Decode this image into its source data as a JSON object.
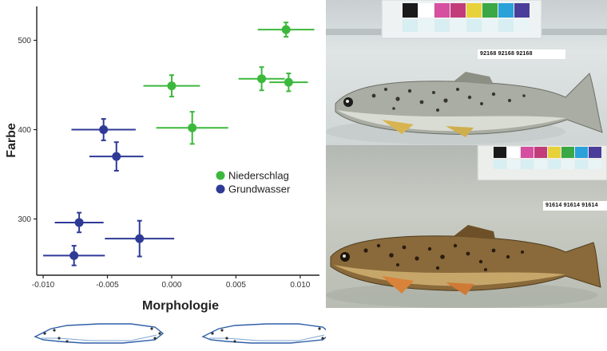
{
  "chart_data": {
    "type": "scatter",
    "xlabel": "Morphologie",
    "ylabel": "Farbe",
    "xlim": [
      -0.0105,
      0.0115
    ],
    "ylim": [
      237,
      538
    ],
    "xticks": [
      -0.01,
      -0.005,
      0.0,
      0.005,
      0.01
    ],
    "xtick_labels": [
      "-0.010",
      "-0.005",
      "0.000",
      "0.005",
      "0.010"
    ],
    "yticks": [
      300,
      400,
      500
    ],
    "ytick_labels": [
      "300",
      "400",
      "500"
    ],
    "grid": false,
    "legend_position": "right-middle",
    "error_bars": true,
    "series": [
      {
        "name": "Niederschlag",
        "color": "#3cb83c",
        "points": [
          {
            "x": 0.0089,
            "y": 512,
            "xerr": 0.0022,
            "yerr": 8
          },
          {
            "x": 0.007,
            "y": 457,
            "xerr": 0.0018,
            "yerr": 13
          },
          {
            "x": 0.0091,
            "y": 453,
            "xerr": 0.0015,
            "yerr": 10
          },
          {
            "x": 0.0,
            "y": 449,
            "xerr": 0.0022,
            "yerr": 12
          },
          {
            "x": 0.0016,
            "y": 402,
            "xerr": 0.0028,
            "yerr": 18
          }
        ]
      },
      {
        "name": "Grundwasser",
        "color": "#2e3a96",
        "points": [
          {
            "x": -0.0053,
            "y": 400,
            "xerr": 0.0025,
            "yerr": 12
          },
          {
            "x": -0.0043,
            "y": 370,
            "xerr": 0.0021,
            "yerr": 16
          },
          {
            "x": -0.0072,
            "y": 296,
            "xerr": 0.0019,
            "yerr": 11
          },
          {
            "x": -0.0025,
            "y": 278,
            "xerr": 0.0027,
            "yerr": 20
          },
          {
            "x": -0.0076,
            "y": 259,
            "xerr": 0.0024,
            "yerr": 11
          }
        ]
      }
    ]
  },
  "photos": {
    "top_label": "92168 92168 92168",
    "bottom_label": "91614 91614 91614",
    "top_fish": "pale-brown-trout",
    "bottom_fish": "dark-brown-trout",
    "color_chart_colors": [
      "#1a1a1a",
      "#ffffff",
      "#d64fa0",
      "#c23c7a",
      "#e8d23a",
      "#3aa845",
      "#2aa1d8",
      "#4b3e9a"
    ]
  },
  "shape_outlines": {
    "line_color": "#2f5fa8"
  }
}
